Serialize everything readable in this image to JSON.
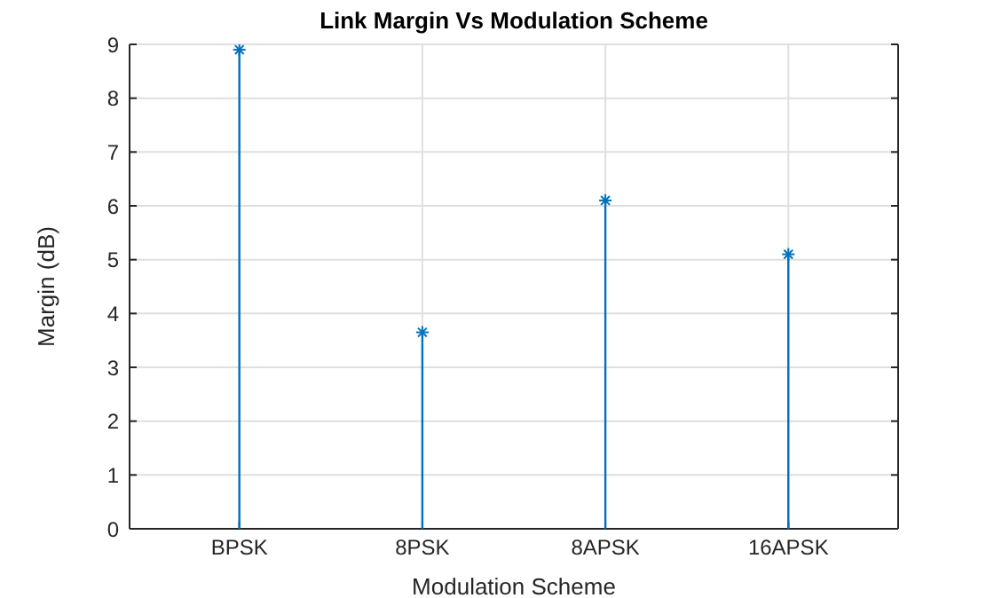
{
  "chart_data": {
    "type": "lollipop",
    "title": "Link Margin Vs Modulation Scheme",
    "xlabel": "Modulation Scheme",
    "ylabel": "Margin (dB)",
    "categories": [
      "BPSK",
      "8PSK",
      "8APSK",
      "16APSK"
    ],
    "values": [
      8.9,
      3.65,
      6.1,
      5.1
    ],
    "color": "#0072bd",
    "ylim": [
      0,
      9
    ],
    "yticks": [
      0,
      1,
      2,
      3,
      4,
      5,
      6,
      7,
      8,
      9
    ],
    "grid": true,
    "marker": "cross",
    "legend": false
  }
}
